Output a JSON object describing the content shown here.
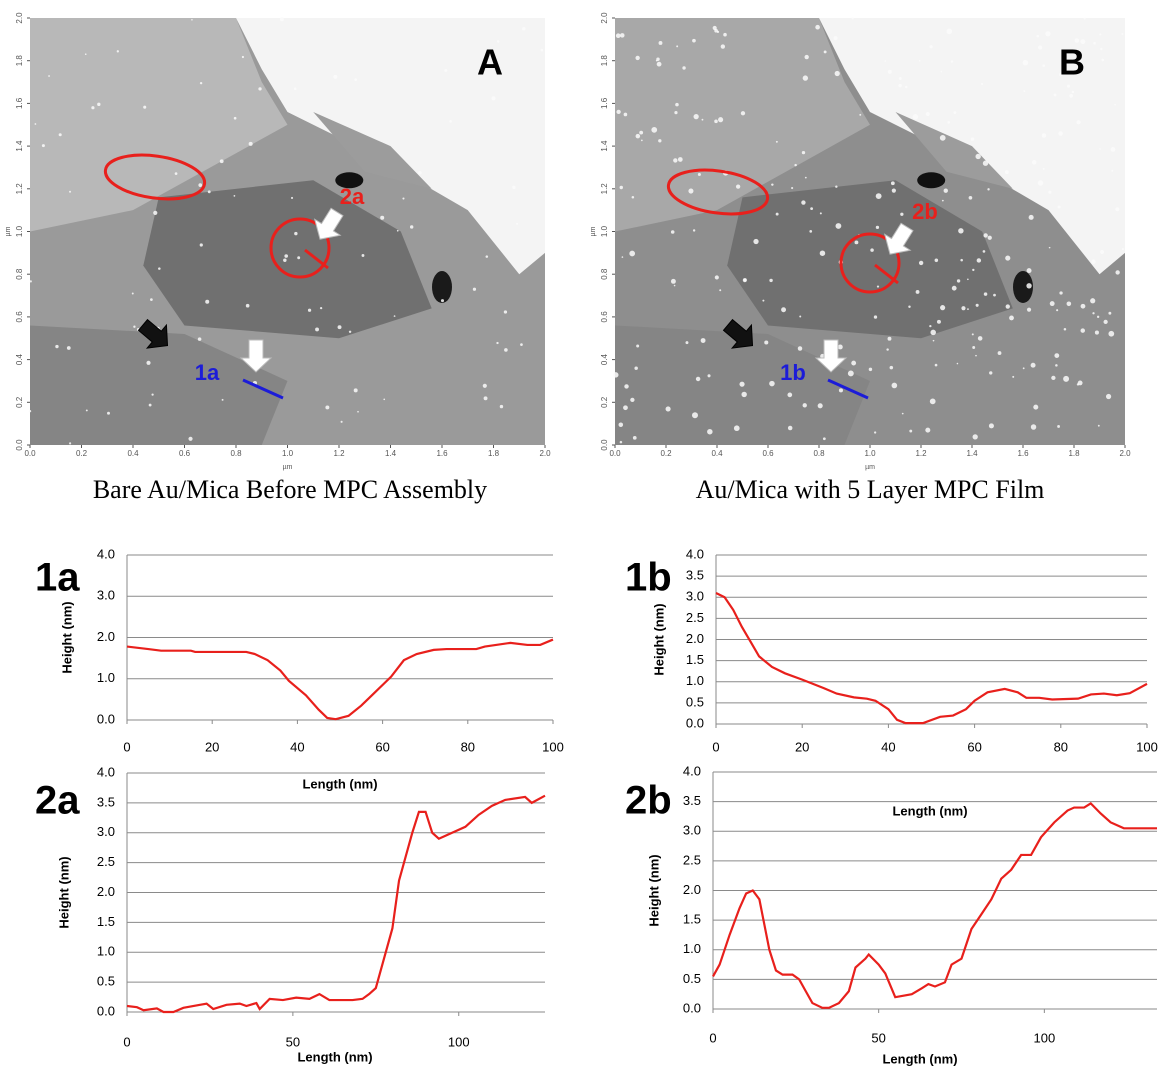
{
  "chart_data": [
    {
      "type": "image",
      "title": "A",
      "caption": "Bare Au/Mica Before MPC Assembly",
      "xlabel": "µm",
      "ylabel": "µm",
      "xlim": [
        0,
        2
      ],
      "ylim": [
        0,
        2
      ],
      "xticks": [
        {
          "value": 0,
          "label": "0.0"
        },
        0.2,
        0.4,
        0.6,
        0.8,
        {
          "value": 1,
          "label": "1.0"
        },
        1.2,
        1.4,
        1.6,
        1.8,
        {
          "value": 2,
          "label": "2.0"
        }
      ],
      "yticks": [
        {
          "value": 0,
          "label": "0.0"
        },
        0.2,
        0.4,
        0.6,
        0.8,
        {
          "value": 1,
          "label": "1.0"
        },
        1.2,
        1.4,
        1.6,
        1.8,
        {
          "value": 2,
          "label": "2.0"
        }
      ],
      "annotations": [
        "1a",
        "2a"
      ]
    },
    {
      "type": "image",
      "title": "B",
      "caption": "Au/Mica with 5 Layer MPC Film",
      "xlabel": "µm",
      "ylabel": "µm",
      "xlim": [
        0,
        2
      ],
      "ylim": [
        0,
        2
      ],
      "xticks": [
        {
          "value": 0,
          "label": "0.0"
        },
        0.2,
        0.4,
        0.6,
        0.8,
        {
          "value": 1,
          "label": "1.0"
        },
        1.2,
        1.4,
        1.6,
        1.8,
        {
          "value": 2,
          "label": "2.0"
        }
      ],
      "yticks": [
        {
          "value": 0,
          "label": "0.0"
        },
        0.2,
        0.4,
        0.6,
        0.8,
        {
          "value": 1,
          "label": "1.0"
        },
        1.2,
        1.4,
        1.6,
        1.8,
        {
          "value": 2,
          "label": "2.0"
        }
      ],
      "annotations": [
        "1b",
        "2b"
      ]
    },
    {
      "type": "line",
      "title": "1a",
      "xlabel": "Length (nm)",
      "ylabel": "Height (nm)",
      "color": "#e8201c",
      "xlim": [
        0,
        100
      ],
      "ylim": [
        0,
        4
      ],
      "xticks": [
        0,
        20,
        40,
        60,
        80,
        100
      ],
      "yticks": [
        {
          "value": 0,
          "label": "0.0"
        },
        {
          "value": 1,
          "label": "1.0"
        },
        {
          "value": 2,
          "label": "2.0"
        },
        {
          "value": 3,
          "label": "3.0"
        },
        {
          "value": 4,
          "label": "4.0"
        }
      ],
      "x": [
        0,
        5,
        8,
        15,
        16,
        28,
        30,
        33,
        36,
        38,
        42,
        45,
        47,
        49,
        52,
        55,
        58,
        62,
        65,
        68,
        72,
        75,
        82,
        84,
        90,
        94,
        97,
        100
      ],
      "values": [
        1.78,
        1.72,
        1.68,
        1.68,
        1.65,
        1.65,
        1.6,
        1.45,
        1.2,
        0.95,
        0.6,
        0.25,
        0.05,
        0.02,
        0.1,
        0.35,
        0.65,
        1.05,
        1.45,
        1.6,
        1.7,
        1.72,
        1.72,
        1.78,
        1.87,
        1.82,
        1.82,
        1.95
      ]
    },
    {
      "type": "line",
      "title": "1b",
      "xlabel": "Length (nm)",
      "ylabel": "Height (nm)",
      "color": "#e8201c",
      "xlim": [
        0,
        100
      ],
      "ylim": [
        0,
        4
      ],
      "xticks": [
        0,
        20,
        40,
        60,
        80,
        100
      ],
      "yticks": [
        {
          "value": 0,
          "label": "0.0"
        },
        0.5,
        {
          "value": 1,
          "label": "1.0"
        },
        1.5,
        {
          "value": 2,
          "label": "2.0"
        },
        2.5,
        {
          "value": 3,
          "label": "3.0"
        },
        3.5,
        {
          "value": 4,
          "label": "4.0"
        }
      ],
      "x": [
        0,
        2,
        4,
        6,
        8,
        10,
        13,
        16,
        20,
        25,
        28,
        32,
        35,
        37,
        40,
        42,
        44,
        48,
        52,
        55,
        58,
        60,
        63,
        67,
        70,
        72,
        75,
        78,
        84,
        87,
        90,
        93,
        96,
        100
      ],
      "values": [
        3.1,
        3.0,
        2.7,
        2.3,
        1.95,
        1.6,
        1.35,
        1.2,
        1.05,
        0.85,
        0.72,
        0.63,
        0.6,
        0.55,
        0.35,
        0.1,
        0.02,
        0.02,
        0.17,
        0.2,
        0.35,
        0.55,
        0.75,
        0.83,
        0.75,
        0.62,
        0.62,
        0.58,
        0.6,
        0.7,
        0.72,
        0.68,
        0.73,
        0.95
      ]
    },
    {
      "type": "line",
      "title": "2a",
      "xlabel": "Length (nm)",
      "ylabel": "Height (nm)",
      "color": "#e8201c",
      "xlim": [
        0,
        126
      ],
      "ylim": [
        0,
        4
      ],
      "xticks": [
        0,
        50,
        100
      ],
      "yticks": [
        {
          "value": 0,
          "label": "0.0"
        },
        0.5,
        {
          "value": 1,
          "label": "1.0"
        },
        1.5,
        {
          "value": 2,
          "label": "2.0"
        },
        2.5,
        {
          "value": 3,
          "label": "3.0"
        },
        3.5,
        {
          "value": 4,
          "label": "4.0"
        }
      ],
      "x": [
        0,
        3,
        5,
        9,
        11,
        14,
        17,
        22,
        24,
        26,
        30,
        34,
        36,
        39,
        40,
        43,
        47,
        51,
        55,
        58,
        61,
        68,
        71,
        73,
        75,
        77,
        80,
        82,
        86,
        88,
        90,
        92,
        94,
        96,
        98,
        102,
        106,
        110,
        114,
        120,
        122,
        126
      ],
      "values": [
        0.1,
        0.08,
        0.03,
        0.06,
        0,
        0,
        0.07,
        0.12,
        0.14,
        0.05,
        0.12,
        0.14,
        0.1,
        0.15,
        0.05,
        0.22,
        0.2,
        0.24,
        0.22,
        0.3,
        0.2,
        0.2,
        0.22,
        0.3,
        0.4,
        0.8,
        1.4,
        2.2,
        3.0,
        3.35,
        3.35,
        3.0,
        2.9,
        2.95,
        3.0,
        3.1,
        3.3,
        3.45,
        3.55,
        3.6,
        3.5,
        3.62
      ]
    },
    {
      "type": "line",
      "title": "2b",
      "xlabel": "Length (nm)",
      "ylabel": "Height (nm)",
      "color": "#e8201c",
      "xlim": [
        0,
        134
      ],
      "ylim": [
        0,
        4
      ],
      "xticks": [
        0,
        50,
        100
      ],
      "yticks": [
        {
          "value": 0,
          "label": "0.0"
        },
        0.5,
        {
          "value": 1,
          "label": "1.0"
        },
        1.5,
        {
          "value": 2,
          "label": "2.0"
        },
        2.5,
        {
          "value": 3,
          "label": "3.0"
        },
        3.5,
        {
          "value": 4,
          "label": "4.0"
        }
      ],
      "x": [
        0,
        2,
        5,
        8,
        10,
        12,
        14,
        17,
        19,
        21,
        24,
        26,
        28,
        30,
        33,
        35,
        38,
        41,
        43,
        46,
        47,
        50,
        52,
        55,
        60,
        63,
        65,
        67,
        70,
        72,
        75,
        78,
        81,
        84,
        87,
        90,
        93,
        96,
        99,
        103,
        107,
        109,
        112,
        114,
        117,
        120,
        124,
        129,
        134
      ],
      "values": [
        0.55,
        0.75,
        1.25,
        1.7,
        1.95,
        2.0,
        1.85,
        1.0,
        0.65,
        0.58,
        0.58,
        0.5,
        0.3,
        0.1,
        0.02,
        0.02,
        0.1,
        0.3,
        0.7,
        0.85,
        0.92,
        0.75,
        0.6,
        0.2,
        0.25,
        0.35,
        0.42,
        0.38,
        0.45,
        0.75,
        0.85,
        1.35,
        1.6,
        1.85,
        2.2,
        2.35,
        2.6,
        2.6,
        2.9,
        3.15,
        3.35,
        3.4,
        3.4,
        3.47,
        3.3,
        3.15,
        3.05,
        3.05,
        3.05
      ]
    }
  ]
}
